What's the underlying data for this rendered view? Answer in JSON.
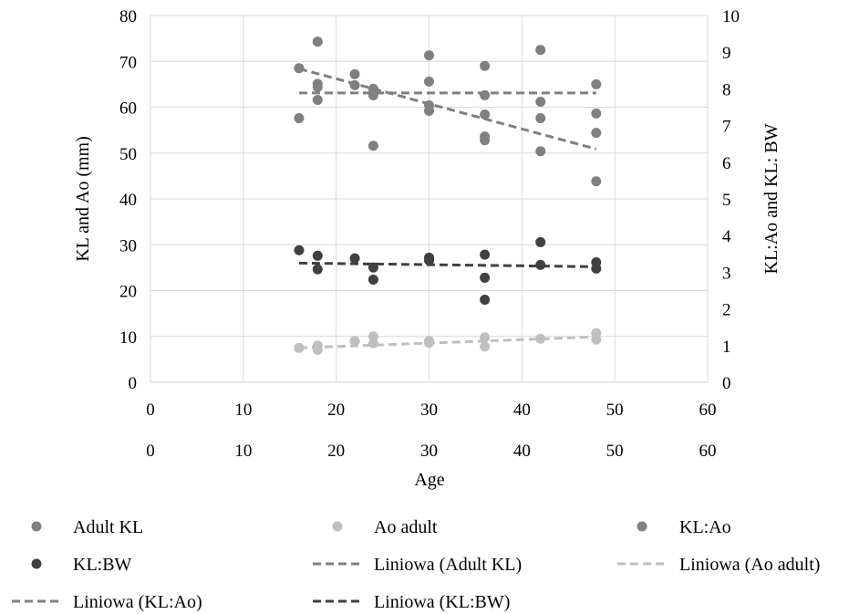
{
  "chart_data": {
    "type": "scatter",
    "xlabel": "Age",
    "ylabel": "KL and Ao (mm)",
    "y2label": "KL:Ao and KL: BW",
    "xlim": [
      0,
      60
    ],
    "ylim": [
      0,
      80
    ],
    "y2lim": [
      0,
      10
    ],
    "x_ticks": [
      "0",
      "10",
      "20",
      "30",
      "40",
      "50",
      "60"
    ],
    "x2_ticks": [
      "0",
      "10",
      "20",
      "30",
      "40",
      "50",
      "60"
    ],
    "y_ticks": [
      "0",
      "10",
      "20",
      "30",
      "40",
      "50",
      "60",
      "70",
      "80"
    ],
    "y2_ticks": [
      "0",
      "1",
      "2",
      "3",
      "4",
      "5",
      "6",
      "7",
      "8",
      "9",
      "10"
    ],
    "grid": true,
    "legend_position": "bottom",
    "series": [
      {
        "name": "Adult KL",
        "marker": "circle",
        "color": "#808080",
        "axis": "y",
        "points": [
          [
            16,
            68.5
          ],
          [
            18,
            74.3
          ],
          [
            18,
            65.1
          ],
          [
            22,
            67.2
          ],
          [
            22,
            64.8
          ],
          [
            24,
            64.0
          ],
          [
            24,
            62.6
          ],
          [
            30,
            71.3
          ],
          [
            30,
            65.6
          ],
          [
            36,
            69.0
          ],
          [
            36,
            62.6
          ],
          [
            42,
            72.5
          ],
          [
            48,
            65.0
          ]
        ]
      },
      {
        "name": "Ao adult",
        "marker": "circle",
        "color": "#bfbfbf",
        "axis": "y",
        "points": [
          [
            16,
            7.5
          ],
          [
            18,
            7.1
          ],
          [
            18,
            8.0
          ],
          [
            22,
            9.0
          ],
          [
            24,
            8.5
          ],
          [
            24,
            10.0
          ],
          [
            30,
            8.6
          ],
          [
            30,
            9.0
          ],
          [
            36,
            7.8
          ],
          [
            36,
            9.8
          ],
          [
            42,
            9.5
          ],
          [
            48,
            9.3
          ],
          [
            48,
            10.7
          ]
        ]
      },
      {
        "name": "KL:Ao",
        "marker": "circle",
        "color": "#808080",
        "axis": "y2",
        "points": [
          [
            16,
            7.2
          ],
          [
            18,
            7.7
          ],
          [
            18,
            8.05
          ],
          [
            24,
            6.45
          ],
          [
            24,
            7.9
          ],
          [
            30,
            7.4
          ],
          [
            30,
            7.55
          ],
          [
            36,
            7.3
          ],
          [
            36,
            6.7
          ],
          [
            36,
            6.6
          ],
          [
            42,
            7.65
          ],
          [
            42,
            7.2
          ],
          [
            42,
            6.3
          ],
          [
            48,
            7.33
          ],
          [
            48,
            6.8
          ],
          [
            48,
            5.48
          ]
        ]
      },
      {
        "name": "KL:BW",
        "marker": "circle",
        "color": "#404040",
        "axis": "y2",
        "points": [
          [
            16,
            3.6
          ],
          [
            18,
            3.45
          ],
          [
            18,
            3.08
          ],
          [
            22,
            3.38
          ],
          [
            24,
            3.13
          ],
          [
            24,
            2.8
          ],
          [
            30,
            3.4
          ],
          [
            30,
            3.32
          ],
          [
            36,
            3.48
          ],
          [
            36,
            2.85
          ],
          [
            36,
            2.25
          ],
          [
            42,
            3.82
          ],
          [
            42,
            3.2
          ],
          [
            48,
            3.27
          ],
          [
            48,
            3.1
          ]
        ]
      },
      {
        "name": "Liniowa (Adult KL)",
        "type": "trendline",
        "dash": "dash",
        "color": "#808080",
        "axis": "y",
        "x": [
          16,
          48
        ],
        "y": [
          63.1,
          63.1
        ]
      },
      {
        "name": "Liniowa (Ao adult)",
        "type": "trendline",
        "dash": "dash",
        "color": "#bfbfbf",
        "axis": "y",
        "x": [
          16,
          48
        ],
        "y": [
          7.5,
          9.9
        ]
      },
      {
        "name": "Liniowa (KL:Ao)",
        "type": "trendline",
        "dash": "dash",
        "color": "#808080",
        "axis": "y2",
        "x": [
          16,
          48
        ],
        "y": [
          8.55,
          6.36
        ]
      },
      {
        "name": "Liniowa (KL:BW)",
        "type": "trendline",
        "dash": "dash",
        "color": "#404040",
        "axis": "y2",
        "x": [
          16,
          48
        ],
        "y": [
          3.25,
          3.15
        ]
      }
    ],
    "legend": [
      {
        "label": "Adult KL",
        "kind": "marker",
        "color": "#808080"
      },
      {
        "label": "Ao adult",
        "kind": "marker",
        "color": "#bfbfbf"
      },
      {
        "label": "KL:Ao",
        "kind": "marker",
        "color": "#808080"
      },
      {
        "label": "KL:BW",
        "kind": "marker",
        "color": "#404040"
      },
      {
        "label": "Liniowa (Adult KL)",
        "kind": "line",
        "color": "#808080"
      },
      {
        "label": "Liniowa (Ao adult)",
        "kind": "line",
        "color": "#bfbfbf"
      },
      {
        "label": "Liniowa (KL:Ao)",
        "kind": "line",
        "color": "#808080"
      },
      {
        "label": "Liniowa (KL:BW)",
        "kind": "line",
        "color": "#404040"
      }
    ]
  }
}
